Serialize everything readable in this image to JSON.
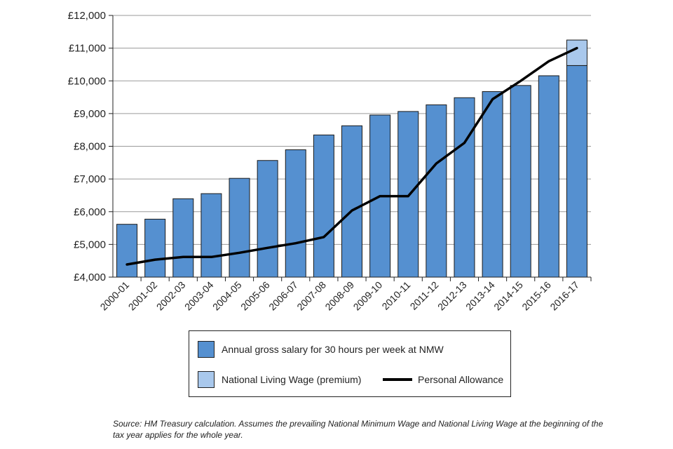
{
  "chart_data": {
    "type": "bar",
    "categories": [
      "2000-01",
      "2001-02",
      "2002-03",
      "2003-04",
      "2004-05",
      "2005-06",
      "2006-07",
      "2007-08",
      "2008-09",
      "2009-10",
      "2010-11",
      "2011-12",
      "2012-13",
      "2013-14",
      "2014-15",
      "2015-16",
      "2016-17"
    ],
    "series": [
      {
        "name": "Annual gross salary for 30 hours per week at NMW",
        "kind": "bar",
        "color": "#5590d0",
        "values": [
          5615,
          5772,
          6396,
          6552,
          7020,
          7566,
          7893,
          8346,
          8627,
          8955,
          9064,
          9267,
          9485,
          9672,
          9859,
          10156,
          10468
        ]
      },
      {
        "name": "National Living Wage (premium)",
        "kind": "stacked-bar",
        "color": "#a9c8ec",
        "values": [
          0,
          0,
          0,
          0,
          0,
          0,
          0,
          0,
          0,
          0,
          0,
          0,
          0,
          0,
          0,
          0,
          780
        ]
      },
      {
        "name": "Personal Allowance",
        "kind": "line",
        "color": "#000000",
        "values": [
          4385,
          4535,
          4615,
          4615,
          4745,
          4895,
          5035,
          5225,
          6035,
          6475,
          6475,
          7475,
          8105,
          9440,
          10000,
          10600,
          11000
        ]
      }
    ],
    "y_ticks": [
      "£4,000",
      "£5,000",
      "£6,000",
      "£7,000",
      "£8,000",
      "£9,000",
      "£10,000",
      "£11,000",
      "£12,000"
    ],
    "ylim": [
      4000,
      12000
    ],
    "grid": true,
    "legend_position": "bottom"
  },
  "legend": {
    "nmw": "Annual gross salary for 30 hours per week at NMW",
    "nlw": "National Living Wage (premium)",
    "pa": "Personal Allowance"
  },
  "source_note": "Source: HM Treasury calculation. Assumes the prevailing National Minimum Wage and National Living Wage at the beginning of the tax year applies for the whole year."
}
